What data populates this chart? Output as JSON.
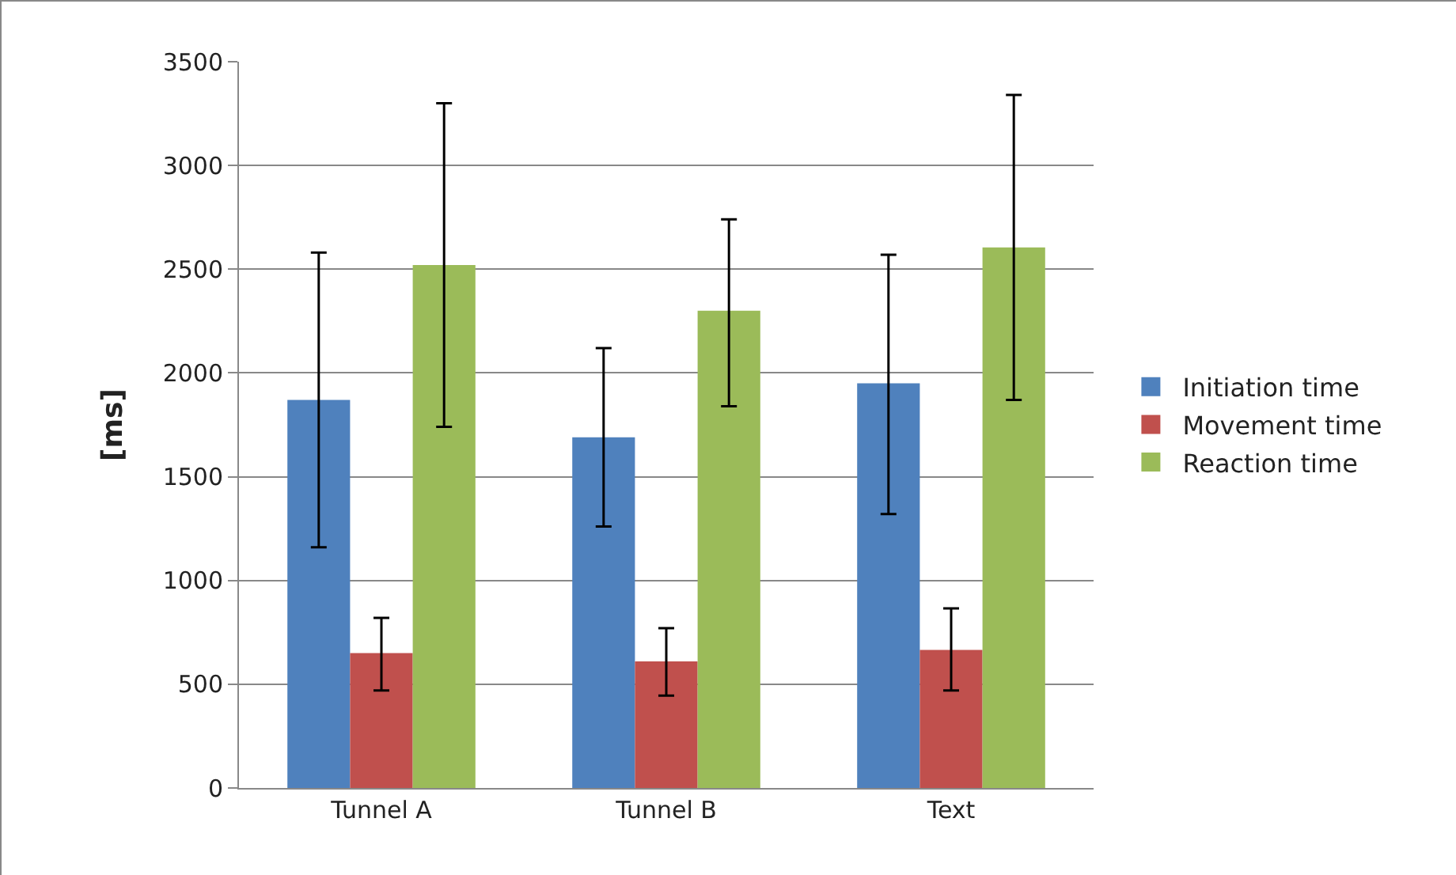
{
  "chart_data": {
    "type": "bar",
    "ylabel": "[ms]",
    "categories": [
      "Tunnel A",
      "Tunnel B",
      "Text"
    ],
    "series": [
      {
        "name": "Initiation time",
        "color": "#4f81bd",
        "values": [
          1870,
          1690,
          1950
        ],
        "errors": [
          [
            1160,
            2580
          ],
          [
            1260,
            2120
          ],
          [
            1320,
            2570
          ]
        ]
      },
      {
        "name": "Movement time",
        "color": "#c0504d",
        "values": [
          650,
          610,
          665
        ],
        "errors": [
          [
            470,
            820
          ],
          [
            445,
            770
          ],
          [
            470,
            865
          ]
        ]
      },
      {
        "name": "Reaction time",
        "color": "#9bbb59",
        "values": [
          2520,
          2300,
          2605
        ],
        "errors": [
          [
            1740,
            3300
          ],
          [
            1840,
            2740
          ],
          [
            1870,
            3340
          ]
        ]
      }
    ],
    "ylim": [
      0,
      3500
    ],
    "yticks": [
      0,
      500,
      1000,
      1500,
      2000,
      2500,
      3000,
      3500
    ],
    "grid": "y",
    "legend": "right"
  }
}
